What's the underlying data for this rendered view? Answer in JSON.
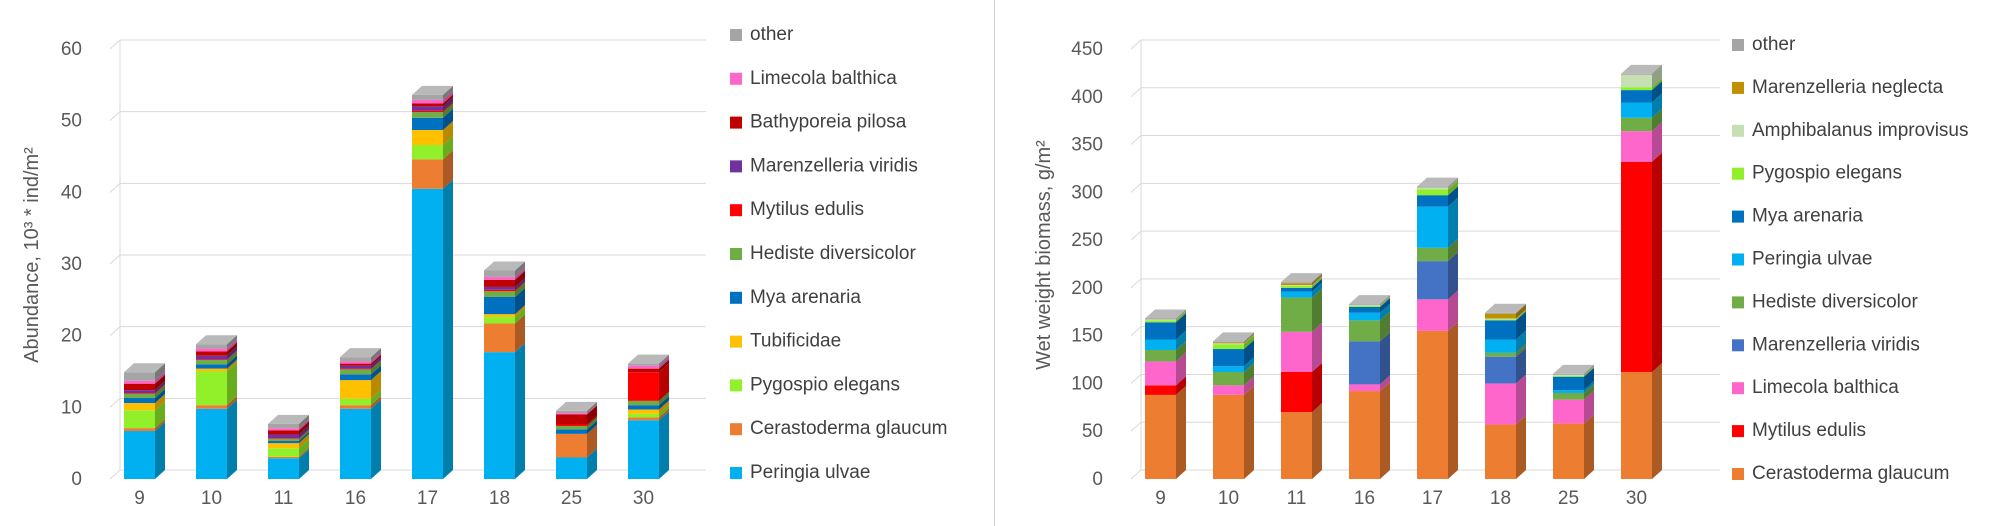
{
  "chart_data": [
    {
      "type": "bar",
      "stacked": true,
      "categories": [
        "9",
        "10",
        "11",
        "16",
        "17",
        "18",
        "25",
        "30"
      ],
      "ylabel": "Abundance, 10³ * ind/m²",
      "ylim": [
        0,
        60
      ],
      "yticks": [
        "0",
        "10",
        "20",
        "30",
        "40",
        "50",
        "60"
      ],
      "grid": true,
      "legend_position": "right",
      "series": [
        {
          "name": "Peringia ulvae",
          "color": "#00B0F0",
          "values": [
            6.7,
            9.8,
            2.9,
            9.8,
            40.5,
            17.7,
            3.0,
            8.2
          ]
        },
        {
          "name": "Cerastoderma glaucum",
          "color": "#ED7D31",
          "values": [
            0.4,
            0.5,
            0.2,
            0.5,
            4.1,
            4.0,
            3.3,
            0.4
          ]
        },
        {
          "name": "Pygospio elegans",
          "color": "#92F02B",
          "values": [
            2.5,
            4.7,
            1.2,
            0.9,
            2.0,
            0.9,
            0.0,
            0.5
          ]
        },
        {
          "name": "Tubificidae",
          "color": "#FFC000",
          "values": [
            1.0,
            0.4,
            0.7,
            2.6,
            2.1,
            0.4,
            0.0,
            0.6
          ]
        },
        {
          "name": "Mya arenaria",
          "color": "#0070C0",
          "values": [
            0.7,
            0.6,
            0.3,
            0.8,
            1.7,
            2.4,
            0.6,
            0.6
          ]
        },
        {
          "name": "Hediste diversicolor",
          "color": "#70AD47",
          "values": [
            0.6,
            0.6,
            0.3,
            0.7,
            0.8,
            0.8,
            0.5,
            0.6
          ]
        },
        {
          "name": "Mytilus edulis",
          "color": "#FF0000",
          "values": [
            0.1,
            0.1,
            0.1,
            0.1,
            0.2,
            0.2,
            0.2,
            4.0
          ]
        },
        {
          "name": "Marenzelleria viridis",
          "color": "#7030A0",
          "values": [
            0.4,
            0.5,
            0.5,
            0.4,
            0.6,
            0.4,
            0.0,
            0.0
          ]
        },
        {
          "name": "Bathyporeia pilosa",
          "color": "#C00000",
          "values": [
            0.9,
            0.6,
            0.6,
            0.3,
            0.4,
            1.0,
            1.4,
            0.5
          ]
        },
        {
          "name": "Limecola balthica",
          "color": "#FF66CC",
          "values": [
            0.4,
            0.4,
            0.3,
            0.3,
            0.5,
            0.4,
            0.2,
            0.4
          ]
        },
        {
          "name": "other",
          "color": "#A5A5A5",
          "values": [
            1.2,
            0.6,
            0.6,
            0.6,
            0.7,
            0.9,
            0.3,
            0.3
          ]
        }
      ]
    },
    {
      "type": "bar",
      "stacked": true,
      "categories": [
        "9",
        "10",
        "11",
        "16",
        "17",
        "18",
        "25",
        "30"
      ],
      "ylabel": "Wet weight biomass, g/m²",
      "ylim": [
        0,
        450
      ],
      "yticks": [
        "0",
        "50",
        "100",
        "150",
        "200",
        "250",
        "300",
        "350",
        "400",
        "450"
      ],
      "grid": true,
      "legend_position": "right",
      "series": [
        {
          "name": "Cerastoderma glaucum",
          "color": "#ED7D31",
          "values": [
            88,
            88,
            70,
            92,
            155,
            57,
            58,
            112
          ]
        },
        {
          "name": "Mytilus edulis",
          "color": "#FF0000",
          "values": [
            10,
            0,
            42,
            0,
            0,
            0,
            0,
            220
          ]
        },
        {
          "name": "Limecola balthica",
          "color": "#FF66CC",
          "values": [
            25,
            10,
            42,
            7,
            33,
            43,
            25,
            32
          ]
        },
        {
          "name": "Marenzelleria viridis",
          "color": "#4472C4",
          "values": [
            0,
            0,
            0,
            45,
            40,
            28,
            0,
            0
          ]
        },
        {
          "name": "Hediste diversicolor",
          "color": "#70AD47",
          "values": [
            12,
            14,
            36,
            22,
            14,
            4,
            7,
            14
          ]
        },
        {
          "name": "Peringia ulvae",
          "color": "#00B0F0",
          "values": [
            11,
            6,
            6,
            8,
            43,
            14,
            3,
            16
          ]
        },
        {
          "name": "Mya arenaria",
          "color": "#0070C0",
          "values": [
            18,
            18,
            4,
            6,
            12,
            20,
            14,
            13
          ]
        },
        {
          "name": "Pygospio elegans",
          "color": "#92F02B",
          "values": [
            2,
            5,
            2,
            1,
            6,
            1,
            1,
            3
          ]
        },
        {
          "name": "Amphibalanus improvisus",
          "color": "#C6E0B4",
          "values": [
            1,
            1,
            1,
            1,
            2,
            1,
            1,
            13
          ]
        },
        {
          "name": "Marenzelleria neglecta",
          "color": "#BF9000",
          "values": [
            0,
            1,
            2,
            0,
            0,
            5,
            0,
            0
          ]
        },
        {
          "name": "other",
          "color": "#A5A5A5",
          "values": [
            1,
            1,
            1,
            1,
            1,
            1,
            1,
            1
          ]
        }
      ]
    }
  ]
}
